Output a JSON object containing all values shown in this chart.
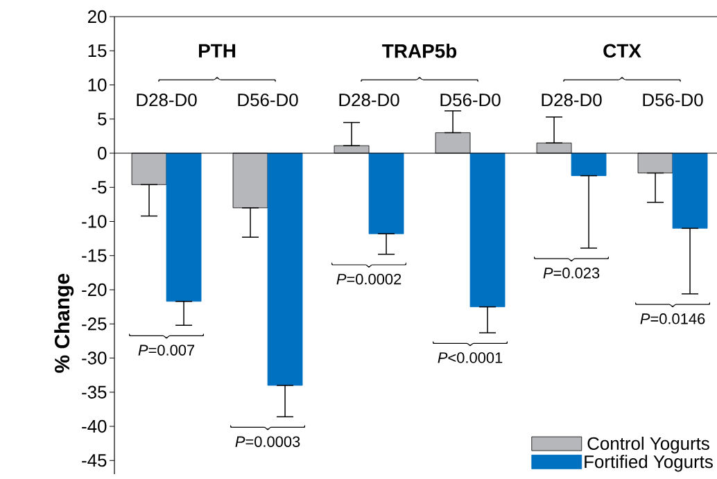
{
  "chart_data": {
    "type": "bar",
    "ylabel": "% Change",
    "categories": [
      "D28-D0",
      "D56-D0",
      "D28-D0",
      "D56-D0",
      "D28-D0",
      "D56-D0"
    ],
    "series": [
      {
        "name": "Control Yogurts",
        "color": "#b6b7ba",
        "values": [
          -4.6,
          -8.0,
          1.1,
          3.0,
          1.5,
          -2.9
        ],
        "errors": [
          [
            -9.2,
            -4.6
          ],
          [
            -12.3,
            -8.0
          ],
          [
            1.1,
            4.5
          ],
          [
            3.0,
            6.2
          ],
          [
            1.5,
            5.3
          ],
          [
            -7.2,
            -2.9
          ]
        ]
      },
      {
        "name": "Fortified Yogurts",
        "color": "#0070c0",
        "values": [
          -21.7,
          -34.0,
          -11.8,
          -22.5,
          -3.3,
          -11.0
        ],
        "errors": [
          [
            -25.2,
            -21.7
          ],
          [
            -38.6,
            -34.0
          ],
          [
            -14.8,
            -11.8
          ],
          [
            -26.3,
            -22.5
          ],
          [
            -13.9,
            -3.3
          ],
          [
            -20.6,
            -11.0
          ]
        ]
      }
    ],
    "ylim": [
      -47,
      20
    ],
    "yticks": [
      -45,
      -40,
      -35,
      -30,
      -25,
      -20,
      -15,
      -10,
      -5,
      0,
      5,
      10,
      15,
      20
    ],
    "ref_lines": [
      {
        "axis": "y",
        "value": 0
      }
    ],
    "legend": "bottom right",
    "annotations": [
      "PTH",
      "TRAP5b",
      "CTX",
      "*P*=0.007",
      "*P*=0.0003",
      "*P*=0.0002",
      "*P*<0.0001",
      "*P*=0.023",
      "*P*=0.0146"
    ]
  }
}
